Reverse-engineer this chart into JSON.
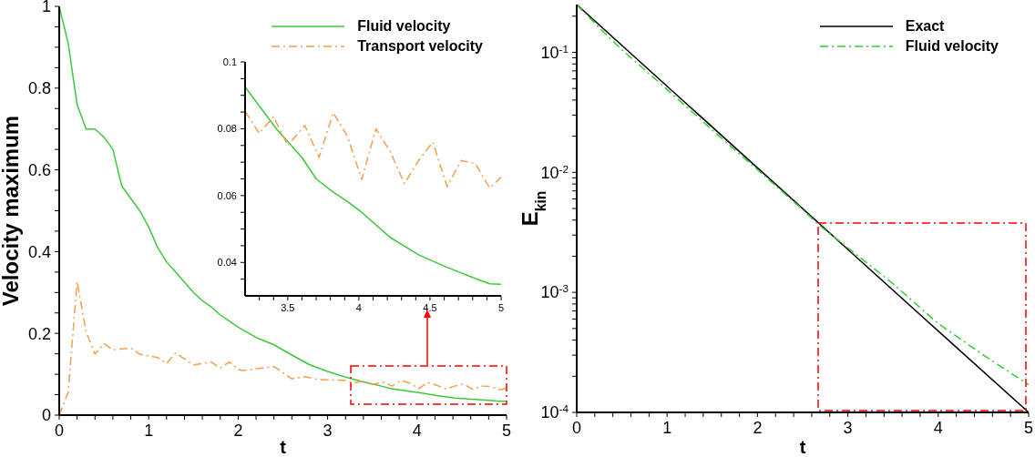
{
  "chart_data": [
    {
      "type": "line",
      "xlabel": "t",
      "ylabel": "Velocity maximum",
      "xlim": [
        0,
        5
      ],
      "ylim": [
        0,
        1
      ],
      "xticks": [
        0,
        {
          "value": 0.2,
          "label": null
        },
        {
          "value": 0.4,
          "label": null
        },
        {
          "value": 0.6,
          "label": null
        },
        {
          "value": 0.8,
          "label": null
        },
        1,
        {
          "value": 1.2,
          "label": null
        },
        {
          "value": 1.4,
          "label": null
        },
        {
          "value": 1.6,
          "label": null
        },
        {
          "value": 1.8,
          "label": null
        },
        2,
        {
          "value": 2.2,
          "label": null
        },
        {
          "value": 2.4,
          "label": null
        },
        {
          "value": 2.6,
          "label": null
        },
        {
          "value": 2.8,
          "label": null
        },
        3,
        {
          "value": 3.2,
          "label": null
        },
        {
          "value": 3.4,
          "label": null
        },
        {
          "value": 3.6,
          "label": null
        },
        {
          "value": 3.8,
          "label": null
        },
        4,
        {
          "value": 4.2,
          "label": null
        },
        {
          "value": 4.4,
          "label": null
        },
        {
          "value": 4.6,
          "label": null
        },
        {
          "value": 4.8,
          "label": null
        },
        5
      ],
      "yticks": [
        0,
        {
          "value": 0.05,
          "label": null
        },
        {
          "value": 0.1,
          "label": null
        },
        {
          "value": 0.15,
          "label": null
        },
        0.2,
        {
          "value": 0.25,
          "label": null
        },
        {
          "value": 0.3,
          "label": null
        },
        {
          "value": 0.35,
          "label": null
        },
        0.4,
        {
          "value": 0.45,
          "label": null
        },
        {
          "value": 0.5,
          "label": null
        },
        {
          "value": 0.55,
          "label": null
        },
        0.6,
        {
          "value": 0.65,
          "label": null
        },
        {
          "value": 0.7,
          "label": null
        },
        {
          "value": 0.75,
          "label": null
        },
        0.8,
        {
          "value": 0.85,
          "label": null
        },
        {
          "value": 0.9,
          "label": null
        },
        {
          "value": 0.95,
          "label": null
        },
        1
      ],
      "grid": false,
      "legend": "top right",
      "marker": "none",
      "series": [
        {
          "name": "Fluid velocity",
          "color": "#3cc83c",
          "line_style": "solid",
          "x": [
            0,
            0.1,
            0.2,
            0.3,
            0.4,
            0.5,
            0.6,
            0.7,
            0.8,
            0.9,
            1,
            1.1,
            1.2,
            1.3,
            1.4,
            1.5,
            1.6,
            1.7,
            1.8,
            1.9,
            2,
            2.2,
            2.4,
            2.6,
            2.8,
            3,
            3.2,
            3.42,
            3.6,
            3.7,
            3.82,
            3.92,
            4.02,
            4.22,
            4.42,
            4.6,
            4.8,
            4.92,
            5
          ],
          "values": [
            1,
            0.91,
            0.76,
            0.7,
            0.7,
            0.68,
            0.65,
            0.56,
            0.53,
            0.5,
            0.46,
            0.41,
            0.375,
            0.35,
            0.325,
            0.3,
            0.28,
            0.265,
            0.245,
            0.23,
            0.215,
            0.19,
            0.172,
            0.147,
            0.123,
            0.107,
            0.093,
            0.08,
            0.071,
            0.065,
            0.061,
            0.058,
            0.055,
            0.048,
            0.042,
            0.039,
            0.036,
            0.034,
            0.034
          ]
        },
        {
          "name": "Transport velocity",
          "color": "#f0a050",
          "line_style": "dashed",
          "x": [
            0,
            0.1,
            0.2,
            0.3,
            0.4,
            0.5,
            0.6,
            0.8,
            0.9,
            1,
            1.1,
            1.2,
            1.3,
            1.5,
            1.7,
            1.8,
            1.9,
            2,
            2.05,
            2.4,
            2.6,
            2.75,
            2.9,
            3.2,
            3.3,
            3.4,
            3.5,
            3.62,
            3.72,
            3.82,
            3.92,
            4.02,
            4.12,
            4.22,
            4.32,
            4.42,
            4.52,
            4.62,
            4.72,
            4.82,
            4.92,
            5
          ],
          "values": [
            0,
            0.056,
            0.327,
            0.204,
            0.149,
            0.175,
            0.16,
            0.164,
            0.149,
            0.145,
            0.141,
            0.126,
            0.152,
            0.123,
            0.13,
            0.115,
            0.13,
            0.112,
            0.109,
            0.119,
            0.089,
            0.094,
            0.087,
            0.085,
            0.079,
            0.084,
            0.075,
            0.081,
            0.071,
            0.085,
            0.078,
            0.065,
            0.08,
            0.073,
            0.064,
            0.071,
            0.076,
            0.063,
            0.071,
            0.07,
            0.062,
            0.066
          ]
        }
      ]
    },
    {
      "type": "line",
      "xlim": [
        3.2,
        5
      ],
      "ylim": [
        0.03,
        0.1
      ],
      "xticks": [
        {
          "value": 3.3,
          "label": null
        },
        {
          "value": 3.4,
          "label": null
        },
        3.5,
        {
          "value": 3.6,
          "label": null
        },
        {
          "value": 3.7,
          "label": null
        },
        {
          "value": 3.8,
          "label": null
        },
        {
          "value": 3.9,
          "label": null
        },
        4,
        {
          "value": 4.1,
          "label": null
        },
        {
          "value": 4.2,
          "label": null
        },
        {
          "value": 4.3,
          "label": null
        },
        {
          "value": 4.4,
          "label": null
        },
        4.5,
        {
          "value": 4.6,
          "label": null
        },
        {
          "value": 4.7,
          "label": null
        },
        {
          "value": 4.8,
          "label": null
        },
        {
          "value": 4.9,
          "label": null
        },
        5
      ],
      "yticks": [
        {
          "value": 0.035,
          "label": null
        },
        0.04,
        {
          "value": 0.045,
          "label": null
        },
        {
          "value": 0.05,
          "label": null
        },
        {
          "value": 0.055,
          "label": null
        },
        0.06,
        {
          "value": 0.065,
          "label": null
        },
        {
          "value": 0.07,
          "label": null
        },
        {
          "value": 0.075,
          "label": null
        },
        0.08,
        {
          "value": 0.085,
          "label": null
        },
        {
          "value": 0.09,
          "label": null
        },
        {
          "value": 0.095,
          "label": null
        },
        0.1
      ],
      "grid": false,
      "marker": "none",
      "series": [
        {
          "color": "#3cc83c",
          "line_style": "solid",
          "x": [
            3.2,
            3.42,
            3.6,
            3.7,
            3.82,
            3.92,
            4.02,
            4.22,
            4.42,
            4.6,
            4.8,
            4.92,
            5
          ],
          "values": [
            0.0925,
            0.08,
            0.0714,
            0.065,
            0.061,
            0.0582,
            0.055,
            0.0475,
            0.0423,
            0.0389,
            0.0355,
            0.0336,
            0.0335
          ]
        },
        {
          "color": "#f0a050",
          "line_style": "dashed",
          "x": [
            3.2,
            3.3,
            3.4,
            3.5,
            3.62,
            3.72,
            3.82,
            3.92,
            4.02,
            4.12,
            4.22,
            4.32,
            4.42,
            4.52,
            4.62,
            4.72,
            4.82,
            4.92,
            5
          ],
          "values": [
            0.0852,
            0.0786,
            0.0836,
            0.075,
            0.081,
            0.0714,
            0.0848,
            0.0777,
            0.0648,
            0.08,
            0.0732,
            0.0636,
            0.0705,
            0.076,
            0.0627,
            0.0705,
            0.0695,
            0.0623,
            0.0655
          ]
        }
      ]
    },
    {
      "type": "line",
      "xlabel": "t",
      "ylabel": "E$_{kin}$",
      "log": "y",
      "xlim": [
        0,
        5
      ],
      "ylim": [
        0.0001,
        0.25
      ],
      "xticks": [
        0,
        {
          "value": 0.2,
          "label": null
        },
        {
          "value": 0.4,
          "label": null
        },
        {
          "value": 0.6,
          "label": null
        },
        {
          "value": 0.8,
          "label": null
        },
        1,
        {
          "value": 1.2,
          "label": null
        },
        {
          "value": 1.4,
          "label": null
        },
        {
          "value": 1.6,
          "label": null
        },
        {
          "value": 1.8,
          "label": null
        },
        2,
        {
          "value": 2.2,
          "label": null
        },
        {
          "value": 2.4,
          "label": null
        },
        {
          "value": 2.6,
          "label": null
        },
        {
          "value": 2.8,
          "label": null
        },
        3,
        {
          "value": 3.2,
          "label": null
        },
        {
          "value": 3.4,
          "label": null
        },
        {
          "value": 3.6,
          "label": null
        },
        {
          "value": 3.8,
          "label": null
        },
        4,
        {
          "value": 4.2,
          "label": null
        },
        {
          "value": 4.4,
          "label": null
        },
        {
          "value": 4.6,
          "label": null
        },
        {
          "value": 4.8,
          "label": null
        },
        5
      ],
      "yticks": [
        {
          "value": 0.0001,
          "label": "10$^{-4}$"
        },
        {
          "value": 0.0002,
          "label": null
        },
        {
          "value": 0.0003,
          "label": null
        },
        {
          "value": 0.0004,
          "label": null
        },
        {
          "value": 0.0005,
          "label": null
        },
        {
          "value": 0.0006,
          "label": null
        },
        {
          "value": 0.0007,
          "label": null
        },
        {
          "value": 0.0008,
          "label": null
        },
        {
          "value": 0.0009,
          "label": null
        },
        {
          "value": 0.001,
          "label": "10$^{-3}$"
        },
        {
          "value": 0.002,
          "label": null
        },
        {
          "value": 0.003,
          "label": null
        },
        {
          "value": 0.004,
          "label": null
        },
        {
          "value": 0.005,
          "label": null
        },
        {
          "value": 0.006,
          "label": null
        },
        {
          "value": 0.007,
          "label": null
        },
        {
          "value": 0.008,
          "label": null
        },
        {
          "value": 0.009,
          "label": null
        },
        {
          "value": 0.01,
          "label": "10$^{-2}$"
        },
        {
          "value": 0.02,
          "label": null
        },
        {
          "value": 0.03,
          "label": null
        },
        {
          "value": 0.04,
          "label": null
        },
        {
          "value": 0.05,
          "label": null
        },
        {
          "value": 0.06,
          "label": null
        },
        {
          "value": 0.07,
          "label": null
        },
        {
          "value": 0.08,
          "label": null
        },
        {
          "value": 0.09,
          "label": null
        },
        {
          "value": 0.1,
          "label": "10$^{-1}$"
        },
        {
          "value": 0.2,
          "label": null
        }
      ],
      "grid": false,
      "legend": "top right",
      "marker": "none",
      "series": [
        {
          "name": "Exact",
          "color": "#000000",
          "line_style": "solid",
          "x": [
            0,
            1,
            2,
            3,
            4,
            5
          ],
          "values": [
            0.25,
            0.0522,
            0.0109,
            0.00228,
            0.000476,
            0.0001
          ]
        },
        {
          "name": "Fluid velocity",
          "color": "#33cc33",
          "line_style": "dashed",
          "x": [
            0,
            0.25,
            0.5,
            1,
            1.5,
            2,
            2.5,
            2.67,
            3,
            3.5,
            4,
            4.5,
            5
          ],
          "values": [
            0.25,
            0.16,
            0.105,
            0.049,
            0.0225,
            0.0105,
            0.0049,
            0.0037,
            0.00235,
            0.00118,
            0.00055,
            0.0003,
            0.00017
          ]
        }
      ]
    }
  ]
}
